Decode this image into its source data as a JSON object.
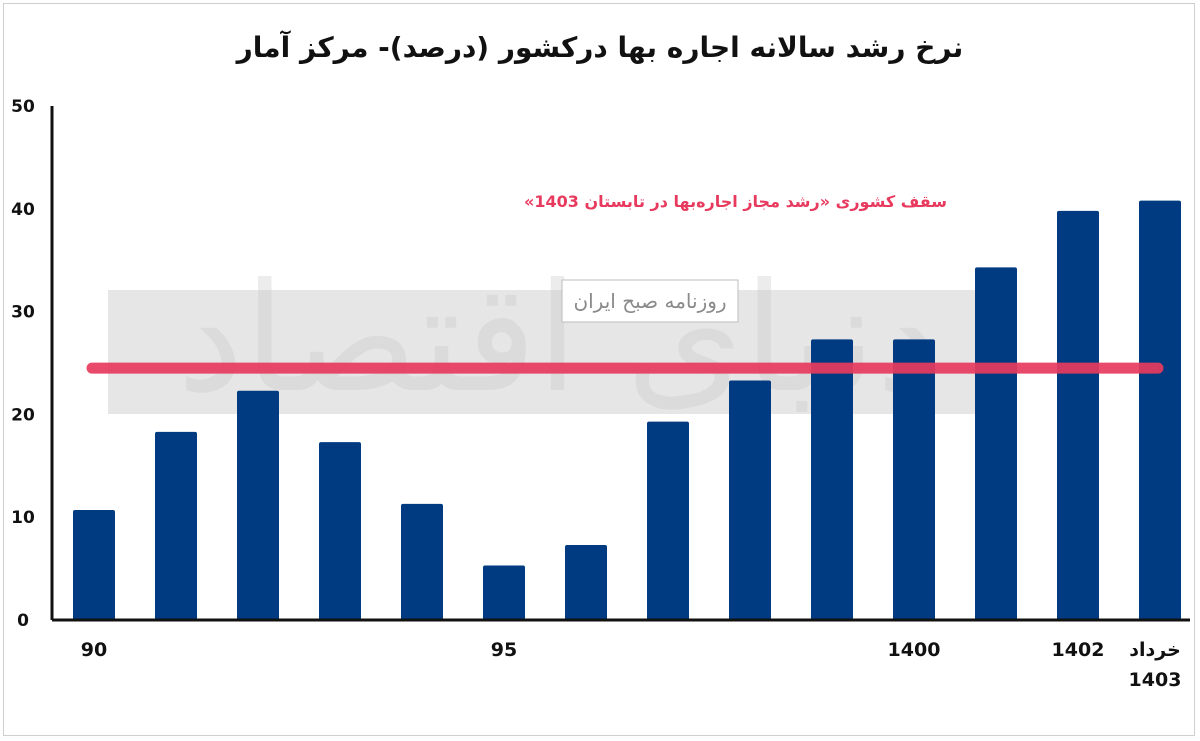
{
  "chart_data": {
    "type": "bar",
    "title": "نرخ رشد سالانه اجاره بها درکشور (درصد)- مرکز آمار",
    "ylim": [
      0,
      50
    ],
    "yticks": [
      "0",
      "10",
      "20",
      "30",
      "40",
      "50"
    ],
    "values": [
      10.7,
      18.3,
      22.3,
      17.3,
      11.3,
      5.3,
      7.3,
      19.3,
      23.3,
      27.3,
      27.3,
      34.3,
      39.8,
      40.8
    ],
    "x_tick_labels": [
      {
        "index": 0,
        "label": "90"
      },
      {
        "index": 5,
        "label": "95"
      },
      {
        "index": 10,
        "label": "1400"
      },
      {
        "index": 12,
        "label": "1402"
      },
      {
        "index": 13,
        "label": "خرداد 1403"
      }
    ],
    "reference_line": {
      "value": 24.5,
      "label": "سقف کشوری «رشد مجاز اجاره‌بها در تابستان 1403»"
    },
    "grid": false,
    "colors": {
      "bar": "#003A80",
      "reference": "#E83A5E",
      "axis": "#111111"
    }
  },
  "watermark": {
    "logo_text": "دنیای اقتصاد",
    "caption": "روزنامه صبح ایران"
  }
}
